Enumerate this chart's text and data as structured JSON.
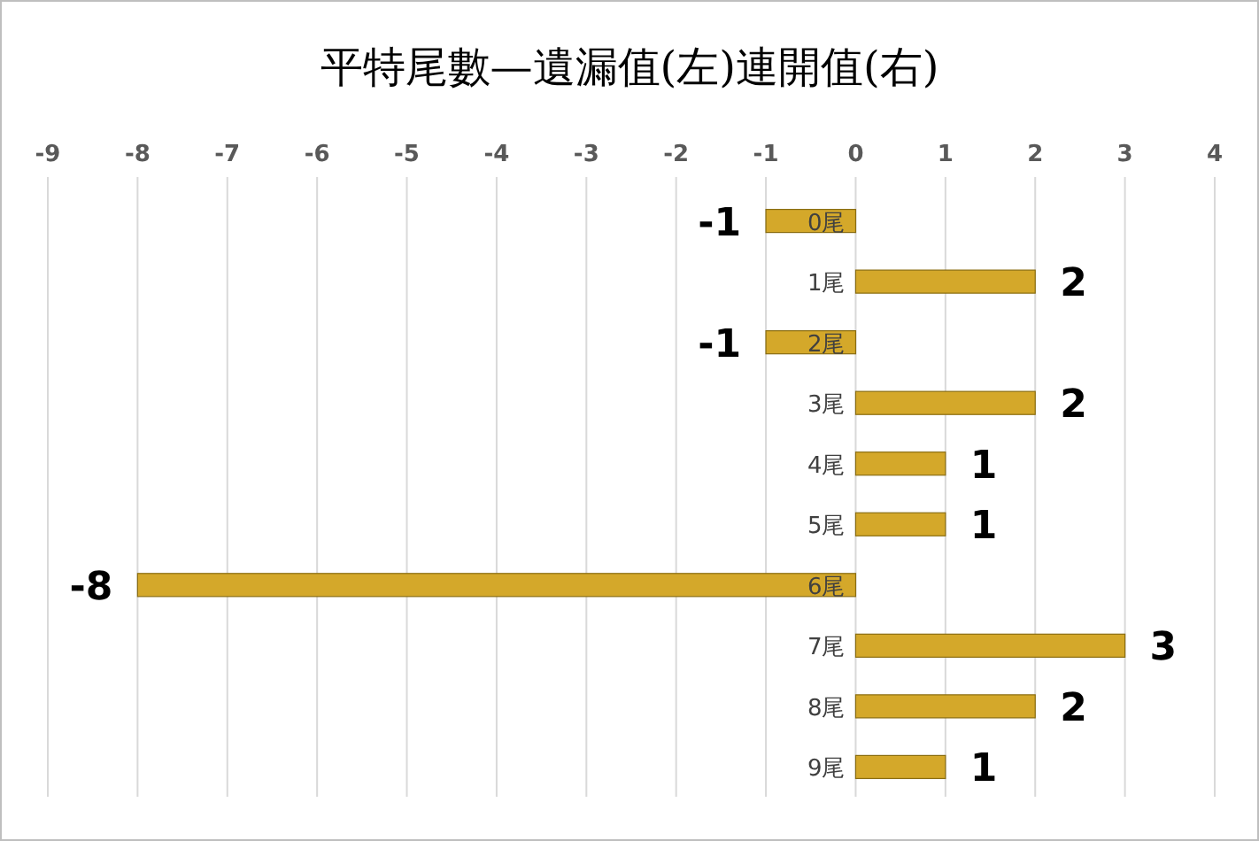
{
  "chart_data": {
    "type": "bar",
    "orientation": "horizontal",
    "title": "平特尾數—遺漏值(左)連開值(右)",
    "categories": [
      "0尾",
      "1尾",
      "2尾",
      "3尾",
      "4尾",
      "5尾",
      "6尾",
      "7尾",
      "8尾",
      "9尾"
    ],
    "values": [
      -1,
      2,
      -1,
      2,
      1,
      1,
      -8,
      3,
      2,
      1
    ],
    "color": "#d4a82a",
    "xlim": [
      -9,
      4
    ],
    "xticks": [
      -9,
      -8,
      -7,
      -6,
      -5,
      -4,
      -3,
      -2,
      -1,
      0,
      1,
      2,
      3,
      4
    ],
    "grid": "x",
    "data_labels": true
  }
}
